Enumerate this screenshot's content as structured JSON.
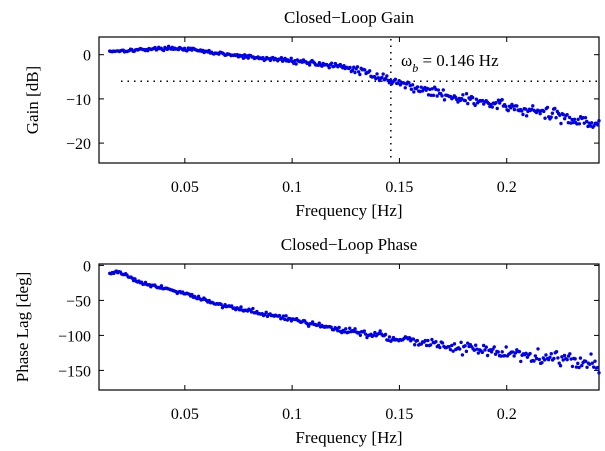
{
  "chart_data": [
    {
      "type": "scatter",
      "title": "Closed−Loop Gain",
      "xlabel": "Frequency [Hz]",
      "ylabel": "Gain [dB]",
      "xlim": [
        0.01,
        0.243
      ],
      "ylim": [
        -24.5,
        4
      ],
      "xticks": [
        {
          "value": 0.05,
          "label": "0.05"
        },
        {
          "value": 0.1,
          "label": "0.1"
        },
        {
          "value": 0.15,
          "label": "0.15"
        },
        {
          "value": 0.2,
          "label": "0.2"
        }
      ],
      "yticks": [
        {
          "value": 0,
          "label": "0"
        },
        {
          "value": -10,
          "label": "−10"
        },
        {
          "value": -20,
          "label": "−20"
        }
      ],
      "bandwidth_line_hz": 0.146,
      "threshold_db": -6,
      "annotation": {
        "symbol": "ω",
        "subscript": "b",
        "text": " = 0.146 Hz"
      },
      "series_color": "#0000ee",
      "trend": {
        "x": [
          0.015,
          0.025,
          0.035,
          0.045,
          0.055,
          0.07,
          0.085,
          0.1,
          0.115,
          0.13,
          0.146,
          0.16,
          0.18,
          0.2,
          0.22,
          0.243
        ],
        "y": [
          0.8,
          1.0,
          1.3,
          1.5,
          1.0,
          0.0,
          -0.8,
          -1.3,
          -2.2,
          -3.4,
          -5.8,
          -7.8,
          -10.0,
          -11.8,
          -13.5,
          -15.5
        ]
      },
      "scatter_spread_db": [
        0.4,
        2.4
      ]
    },
    {
      "type": "scatter",
      "title": "Closed−Loop Phase",
      "xlabel": "Frequency [Hz]",
      "ylabel": "Phase Lag [deg]",
      "xlim": [
        0.01,
        0.243
      ],
      "ylim": [
        -178,
        2
      ],
      "xticks": [
        {
          "value": 0.05,
          "label": "0.05"
        },
        {
          "value": 0.1,
          "label": "0.1"
        },
        {
          "value": 0.15,
          "label": "0.15"
        },
        {
          "value": 0.2,
          "label": "0.2"
        }
      ],
      "yticks": [
        {
          "value": 0,
          "label": "0"
        },
        {
          "value": -50,
          "label": "−50"
        },
        {
          "value": -100,
          "label": "−100"
        },
        {
          "value": -150,
          "label": "−150"
        }
      ],
      "series_color": "#0000ee",
      "trend": {
        "x": [
          0.015,
          0.02,
          0.03,
          0.04,
          0.05,
          0.065,
          0.08,
          0.1,
          0.12,
          0.14,
          0.16,
          0.18,
          0.2,
          0.22,
          0.243
        ],
        "y": [
          -10,
          -10,
          -25,
          -32,
          -40,
          -55,
          -65,
          -78,
          -90,
          -100,
          -110,
          -118,
          -125,
          -132,
          -140
        ]
      },
      "scatter_spread_deg": [
        3,
        15
      ]
    }
  ]
}
